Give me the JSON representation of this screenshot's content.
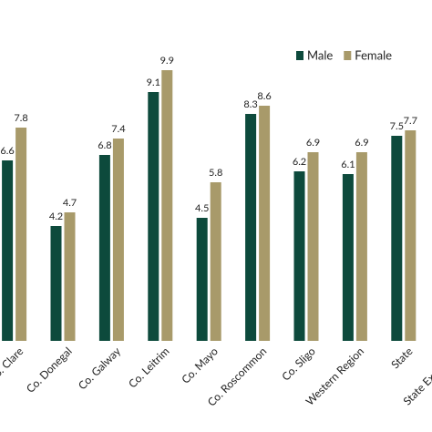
{
  "chart_data": {
    "type": "bar",
    "categories": [
      "Co. Clare",
      "Co. Donegal",
      "Co. Galway",
      "Co. Leitrim",
      "Co. Mayo",
      "Co. Roscommon",
      "Co. Sligo",
      "Western Region",
      "State",
      "State Ex. Dublin"
    ],
    "series": [
      {
        "name": "Male",
        "color": "#0d4a3c",
        "values": [
          6.6,
          4.2,
          6.8,
          9.1,
          4.5,
          8.3,
          6.2,
          6.1,
          7.5,
          null
        ]
      },
      {
        "name": "Female",
        "color": "#a89a6a",
        "values": [
          7.8,
          4.7,
          7.4,
          9.9,
          5.8,
          8.6,
          6.9,
          6.9,
          7.7,
          null
        ]
      }
    ],
    "ylim": [
      0,
      10
    ],
    "legend": "top-right"
  }
}
